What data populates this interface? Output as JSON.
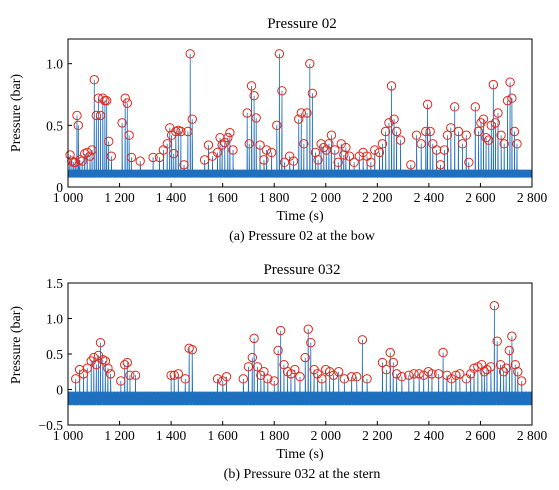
{
  "chart_data": [
    {
      "type": "line",
      "title": "Pressure 02",
      "xlabel": "Time (s)",
      "ylabel": "Pressure (bar)",
      "caption": "(a) Pressure 02 at the bow",
      "xlim": [
        1000,
        2800
      ],
      "ylim": [
        0,
        1.2
      ],
      "xticks": [
        1000,
        1200,
        1400,
        1600,
        1800,
        2000,
        2200,
        2400,
        2600,
        2800
      ],
      "xtick_labels": [
        "1 000",
        "1 200",
        "1 400",
        "1 600",
        "1 800",
        "2 000",
        "2 200",
        "2 400",
        "2 600",
        "2 800"
      ],
      "yticks": [
        0,
        0.5,
        1.0
      ],
      "ytick_labels": [
        "0",
        "0.5",
        "1.0"
      ],
      "baseline": 0.1,
      "baseline_amplitude": 0.04,
      "series_color": "#1f6fbf",
      "marker_color": "#e0281c",
      "peaks": [
        [
          1008,
          0.26
        ],
        [
          1015,
          0.21
        ],
        [
          1022,
          0.2
        ],
        [
          1028,
          0.2
        ],
        [
          1035,
          0.58
        ],
        [
          1040,
          0.5
        ],
        [
          1046,
          0.22
        ],
        [
          1055,
          0.21
        ],
        [
          1065,
          0.27
        ],
        [
          1075,
          0.28
        ],
        [
          1085,
          0.25
        ],
        [
          1093,
          0.3
        ],
        [
          1102,
          0.87
        ],
        [
          1110,
          0.58
        ],
        [
          1118,
          0.72
        ],
        [
          1126,
          0.58
        ],
        [
          1135,
          0.72
        ],
        [
          1143,
          0.7
        ],
        [
          1150,
          0.7
        ],
        [
          1158,
          0.37
        ],
        [
          1168,
          0.25
        ],
        [
          1210,
          0.52
        ],
        [
          1222,
          0.72
        ],
        [
          1230,
          0.68
        ],
        [
          1237,
          0.42
        ],
        [
          1246,
          0.24
        ],
        [
          1280,
          0.21
        ],
        [
          1330,
          0.24
        ],
        [
          1355,
          0.24
        ],
        [
          1370,
          0.3
        ],
        [
          1385,
          0.35
        ],
        [
          1395,
          0.48
        ],
        [
          1402,
          0.42
        ],
        [
          1410,
          0.27
        ],
        [
          1418,
          0.45
        ],
        [
          1428,
          0.46
        ],
        [
          1438,
          0.45
        ],
        [
          1450,
          0.18
        ],
        [
          1465,
          0.45
        ],
        [
          1474,
          1.08
        ],
        [
          1482,
          0.55
        ],
        [
          1530,
          0.22
        ],
        [
          1545,
          0.34
        ],
        [
          1560,
          0.25
        ],
        [
          1580,
          0.28
        ],
        [
          1590,
          0.4
        ],
        [
          1598,
          0.34
        ],
        [
          1608,
          0.36
        ],
        [
          1620,
          0.4
        ],
        [
          1628,
          0.44
        ],
        [
          1640,
          0.3
        ],
        [
          1695,
          0.6
        ],
        [
          1703,
          0.35
        ],
        [
          1712,
          0.82
        ],
        [
          1722,
          0.74
        ],
        [
          1730,
          0.56
        ],
        [
          1745,
          0.34
        ],
        [
          1760,
          0.22
        ],
        [
          1770,
          0.3
        ],
        [
          1790,
          0.28
        ],
        [
          1810,
          0.5
        ],
        [
          1820,
          1.08
        ],
        [
          1830,
          0.78
        ],
        [
          1840,
          0.2
        ],
        [
          1860,
          0.25
        ],
        [
          1875,
          0.21
        ],
        [
          1895,
          0.55
        ],
        [
          1905,
          0.6
        ],
        [
          1915,
          0.35
        ],
        [
          1927,
          0.6
        ],
        [
          1938,
          1.0
        ],
        [
          1948,
          0.76
        ],
        [
          1960,
          0.28
        ],
        [
          1970,
          0.22
        ],
        [
          1982,
          0.35
        ],
        [
          1992,
          0.32
        ],
        [
          2002,
          0.3
        ],
        [
          2012,
          0.35
        ],
        [
          2022,
          0.42
        ],
        [
          2035,
          0.3
        ],
        [
          2048,
          0.2
        ],
        [
          2060,
          0.35
        ],
        [
          2070,
          0.26
        ],
        [
          2078,
          0.32
        ],
        [
          2092,
          0.25
        ],
        [
          2110,
          0.2
        ],
        [
          2130,
          0.25
        ],
        [
          2145,
          0.28
        ],
        [
          2160,
          0.25
        ],
        [
          2175,
          0.2
        ],
        [
          2190,
          0.3
        ],
        [
          2208,
          0.28
        ],
        [
          2220,
          0.35
        ],
        [
          2232,
          0.45
        ],
        [
          2245,
          0.52
        ],
        [
          2255,
          0.82
        ],
        [
          2265,
          0.55
        ],
        [
          2275,
          0.45
        ],
        [
          2290,
          0.38
        ],
        [
          2330,
          0.18
        ],
        [
          2352,
          0.42
        ],
        [
          2370,
          0.35
        ],
        [
          2388,
          0.45
        ],
        [
          2395,
          0.67
        ],
        [
          2405,
          0.45
        ],
        [
          2415,
          0.35
        ],
        [
          2430,
          0.3
        ],
        [
          2445,
          0.18
        ],
        [
          2460,
          0.3
        ],
        [
          2472,
          0.42
        ],
        [
          2485,
          0.48
        ],
        [
          2500,
          0.65
        ],
        [
          2515,
          0.45
        ],
        [
          2530,
          0.35
        ],
        [
          2545,
          0.42
        ],
        [
          2555,
          0.2
        ],
        [
          2580,
          0.65
        ],
        [
          2592,
          0.45
        ],
        [
          2602,
          0.52
        ],
        [
          2612,
          0.55
        ],
        [
          2622,
          0.4
        ],
        [
          2632,
          0.38
        ],
        [
          2642,
          0.5
        ],
        [
          2650,
          0.83
        ],
        [
          2658,
          0.52
        ],
        [
          2668,
          0.6
        ],
        [
          2680,
          0.42
        ],
        [
          2692,
          0.35
        ],
        [
          2705,
          0.7
        ],
        [
          2715,
          0.85
        ],
        [
          2722,
          0.72
        ],
        [
          2732,
          0.45
        ],
        [
          2742,
          0.35
        ]
      ]
    },
    {
      "type": "line",
      "title": "Pressure 032",
      "xlabel": "Time (s)",
      "ylabel": "Pressure (bar)",
      "caption": "(b) Pressure 032 at the stern",
      "xlim": [
        1000,
        2800
      ],
      "ylim": [
        -0.5,
        1.5
      ],
      "xticks": [
        1000,
        1200,
        1400,
        1600,
        1800,
        2000,
        2200,
        2400,
        2600,
        2800
      ],
      "xtick_labels": [
        "1 000",
        "1 200",
        "1 400",
        "1 600",
        "1 800",
        "2 000",
        "2 200",
        "2 400",
        "2 600",
        "2 800"
      ],
      "yticks": [
        -0.5,
        0,
        0.5,
        1.0,
        1.5
      ],
      "ytick_labels": [
        "−0.5",
        "0",
        "0.5",
        "1.0",
        "1.5"
      ],
      "baseline": -0.15,
      "baseline_amplitude": 0.12,
      "series_color": "#1f6fbf",
      "marker_color": "#e0281c",
      "peaks": [
        [
          1030,
          0.15
        ],
        [
          1045,
          0.28
        ],
        [
          1060,
          0.22
        ],
        [
          1075,
          0.3
        ],
        [
          1090,
          0.4
        ],
        [
          1100,
          0.45
        ],
        [
          1110,
          0.35
        ],
        [
          1118,
          0.48
        ],
        [
          1126,
          0.66
        ],
        [
          1135,
          0.42
        ],
        [
          1145,
          0.4
        ],
        [
          1155,
          0.3
        ],
        [
          1165,
          0.22
        ],
        [
          1205,
          0.12
        ],
        [
          1220,
          0.35
        ],
        [
          1230,
          0.38
        ],
        [
          1240,
          0.2
        ],
        [
          1262,
          0.2
        ],
        [
          1400,
          0.2
        ],
        [
          1412,
          0.2
        ],
        [
          1428,
          0.22
        ],
        [
          1455,
          0.15
        ],
        [
          1470,
          0.58
        ],
        [
          1482,
          0.56
        ],
        [
          1580,
          0.15
        ],
        [
          1600,
          0.12
        ],
        [
          1615,
          0.18
        ],
        [
          1680,
          0.15
        ],
        [
          1700,
          0.32
        ],
        [
          1715,
          0.45
        ],
        [
          1722,
          0.72
        ],
        [
          1735,
          0.32
        ],
        [
          1748,
          0.2
        ],
        [
          1760,
          0.25
        ],
        [
          1775,
          0.15
        ],
        [
          1800,
          0.12
        ],
        [
          1815,
          0.55
        ],
        [
          1825,
          0.83
        ],
        [
          1838,
          0.35
        ],
        [
          1852,
          0.25
        ],
        [
          1865,
          0.22
        ],
        [
          1880,
          0.28
        ],
        [
          1900,
          0.18
        ],
        [
          1920,
          0.45
        ],
        [
          1932,
          0.85
        ],
        [
          1942,
          0.66
        ],
        [
          1955,
          0.28
        ],
        [
          1968,
          0.22
        ],
        [
          1985,
          0.15
        ],
        [
          2000,
          0.28
        ],
        [
          2015,
          0.25
        ],
        [
          2030,
          0.2
        ],
        [
          2050,
          0.25
        ],
        [
          2072,
          0.15
        ],
        [
          2100,
          0.18
        ],
        [
          2120,
          0.18
        ],
        [
          2142,
          0.7
        ],
        [
          2160,
          0.15
        ],
        [
          2220,
          0.38
        ],
        [
          2235,
          0.28
        ],
        [
          2250,
          0.52
        ],
        [
          2262,
          0.38
        ],
        [
          2275,
          0.22
        ],
        [
          2295,
          0.18
        ],
        [
          2322,
          0.2
        ],
        [
          2342,
          0.22
        ],
        [
          2362,
          0.22
        ],
        [
          2380,
          0.2
        ],
        [
          2398,
          0.25
        ],
        [
          2412,
          0.22
        ],
        [
          2438,
          0.22
        ],
        [
          2455,
          0.52
        ],
        [
          2470,
          0.2
        ],
        [
          2488,
          0.15
        ],
        [
          2505,
          0.2
        ],
        [
          2520,
          0.22
        ],
        [
          2545,
          0.15
        ],
        [
          2562,
          0.22
        ],
        [
          2575,
          0.3
        ],
        [
          2590,
          0.32
        ],
        [
          2605,
          0.35
        ],
        [
          2615,
          0.25
        ],
        [
          2625,
          0.28
        ],
        [
          2640,
          0.32
        ],
        [
          2654,
          1.18
        ],
        [
          2665,
          0.68
        ],
        [
          2678,
          0.35
        ],
        [
          2690,
          0.25
        ],
        [
          2700,
          0.3
        ],
        [
          2712,
          0.55
        ],
        [
          2722,
          0.75
        ],
        [
          2735,
          0.35
        ],
        [
          2745,
          0.25
        ],
        [
          2760,
          0.12
        ]
      ]
    }
  ]
}
